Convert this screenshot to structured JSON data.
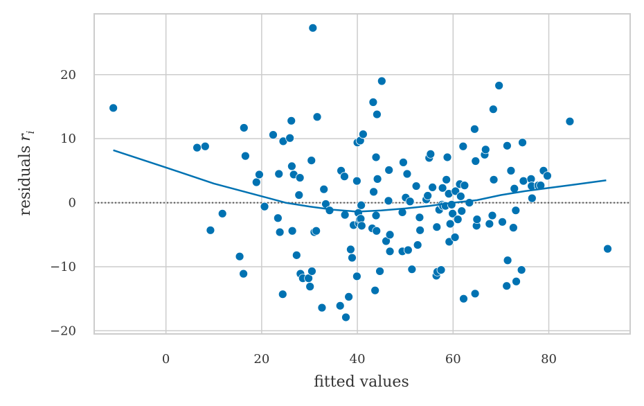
{
  "chart_data": {
    "type": "scatter",
    "xlabel": "fitted values",
    "ylabel": "residuals",
    "ylabel_var": "r",
    "ylabel_sub": "i",
    "xlim": [
      -15,
      97
    ],
    "ylim": [
      -20.5,
      29.5
    ],
    "x_ticks": [
      0,
      20,
      40,
      60,
      80
    ],
    "y_ticks": [
      -20,
      -10,
      0,
      10,
      20
    ],
    "x_tick_labels": [
      "0",
      "20",
      "40",
      "60",
      "80"
    ],
    "y_tick_labels": [
      "−20",
      "−10",
      "0",
      "10",
      "20"
    ],
    "grid": true,
    "colors": {
      "points": "#0072b2",
      "smooth": "#0072b2",
      "zero_line": "#555555",
      "grid": "#cccccc",
      "frame": "#cccccc"
    },
    "reference_line": {
      "y": 0,
      "style": "dotted"
    },
    "smooth_line": {
      "x": [
        -11,
        0,
        10,
        20,
        25,
        30,
        35,
        40,
        45,
        50,
        55,
        60,
        65,
        70,
        75,
        80,
        85,
        92
      ],
      "y": [
        8.2,
        5.5,
        3.0,
        1.0,
        0.0,
        -0.6,
        -1.1,
        -1.4,
        -1.2,
        -0.9,
        -0.5,
        0.0,
        0.4,
        1.2,
        1.8,
        2.3,
        2.8,
        3.5
      ]
    },
    "points": [
      [
        -11,
        14.8
      ],
      [
        6.5,
        8.6
      ],
      [
        8.2,
        8.8
      ],
      [
        9.3,
        -4.3
      ],
      [
        11.8,
        -1.7
      ],
      [
        15.4,
        -8.4
      ],
      [
        16.2,
        -11.1
      ],
      [
        16.3,
        11.7
      ],
      [
        16.6,
        7.3
      ],
      [
        18.9,
        3.2
      ],
      [
        19.5,
        4.4
      ],
      [
        20.6,
        -0.6
      ],
      [
        22.4,
        10.6
      ],
      [
        23.4,
        -2.4
      ],
      [
        23.6,
        4.5
      ],
      [
        23.8,
        -4.6
      ],
      [
        24.4,
        -14.3
      ],
      [
        24.5,
        9.6
      ],
      [
        25.9,
        10.1
      ],
      [
        26.2,
        12.8
      ],
      [
        26.3,
        5.7
      ],
      [
        26.4,
        -4.4
      ],
      [
        26.7,
        4.4
      ],
      [
        27.3,
        -8.2
      ],
      [
        27.8,
        1.2
      ],
      [
        28.0,
        3.9
      ],
      [
        28.1,
        -11.1
      ],
      [
        28.6,
        -11.8
      ],
      [
        29.8,
        -11.8
      ],
      [
        30.1,
        -13.1
      ],
      [
        30.4,
        6.6
      ],
      [
        30.5,
        -10.7
      ],
      [
        30.7,
        27.3
      ],
      [
        31.0,
        -4.6
      ],
      [
        31.4,
        -4.4
      ],
      [
        31.6,
        13.4
      ],
      [
        32.6,
        -16.4
      ],
      [
        33.0,
        2.1
      ],
      [
        33.4,
        -0.2
      ],
      [
        34.2,
        -1.2
      ],
      [
        36.4,
        -16.1
      ],
      [
        36.6,
        5.0
      ],
      [
        37.3,
        4.1
      ],
      [
        37.4,
        -1.9
      ],
      [
        37.6,
        -17.9
      ],
      [
        38.2,
        -14.7
      ],
      [
        38.6,
        -7.3
      ],
      [
        38.9,
        -8.6
      ],
      [
        39.2,
        -3.5
      ],
      [
        39.9,
        -11.5
      ],
      [
        39.9,
        3.4
      ],
      [
        40.0,
        9.4
      ],
      [
        40.2,
        -1.6
      ],
      [
        40.3,
        -3.2
      ],
      [
        40.5,
        -2.6
      ],
      [
        40.6,
        9.7
      ],
      [
        40.7,
        -2.5
      ],
      [
        40.8,
        -0.4
      ],
      [
        40.9,
        -3.6
      ],
      [
        41.2,
        10.7
      ],
      [
        43.1,
        -4.0
      ],
      [
        43.3,
        15.7
      ],
      [
        43.4,
        1.7
      ],
      [
        43.7,
        -13.7
      ],
      [
        43.9,
        7.1
      ],
      [
        43.9,
        -2.0
      ],
      [
        44.0,
        -4.4
      ],
      [
        44.1,
        13.8
      ],
      [
        44.2,
        3.7
      ],
      [
        44.7,
        -10.7
      ],
      [
        45.1,
        19.0
      ],
      [
        46.0,
        -6.0
      ],
      [
        46.5,
        0.3
      ],
      [
        46.6,
        5.1
      ],
      [
        46.8,
        -5.0
      ],
      [
        46.8,
        -7.6
      ],
      [
        49.4,
        -1.5
      ],
      [
        49.4,
        -7.6
      ],
      [
        49.6,
        6.3
      ],
      [
        50.1,
        0.8
      ],
      [
        50.4,
        4.5
      ],
      [
        50.6,
        -7.4
      ],
      [
        51.0,
        0.2
      ],
      [
        51.4,
        -10.4
      ],
      [
        52.3,
        2.6
      ],
      [
        52.6,
        -6.6
      ],
      [
        53.0,
        -2.3
      ],
      [
        53.1,
        -4.3
      ],
      [
        54.4,
        0.5
      ],
      [
        54.7,
        1.1
      ],
      [
        55.0,
        7.0
      ],
      [
        55.3,
        7.6
      ],
      [
        55.7,
        2.4
      ],
      [
        56.5,
        -11.4
      ],
      [
        56.6,
        -3.8
      ],
      [
        56.7,
        -10.8
      ],
      [
        57.1,
        -1.1
      ],
      [
        57.5,
        -10.5
      ],
      [
        57.7,
        -0.3
      ],
      [
        57.8,
        2.3
      ],
      [
        57.9,
        -0.5
      ],
      [
        58.4,
        -0.5
      ],
      [
        58.6,
        3.6
      ],
      [
        58.8,
        7.1
      ],
      [
        59.1,
        1.4
      ],
      [
        59.2,
        -6.1
      ],
      [
        59.4,
        -3.3
      ],
      [
        59.7,
        -0.3
      ],
      [
        59.9,
        -1.7
      ],
      [
        60.4,
        -5.4
      ],
      [
        60.5,
        1.8
      ],
      [
        61.0,
        -2.6
      ],
      [
        61.4,
        2.9
      ],
      [
        61.6,
        1.0
      ],
      [
        61.8,
        -1.3
      ],
      [
        62.1,
        8.8
      ],
      [
        62.2,
        -15.0
      ],
      [
        62.4,
        2.7
      ],
      [
        63.4,
        0.0
      ],
      [
        64.5,
        11.5
      ],
      [
        64.6,
        -14.2
      ],
      [
        64.7,
        6.5
      ],
      [
        64.9,
        -3.6
      ],
      [
        65.0,
        -2.6
      ],
      [
        66.6,
        7.5
      ],
      [
        66.8,
        8.3
      ],
      [
        67.6,
        -3.3
      ],
      [
        68.2,
        -2.0
      ],
      [
        68.4,
        14.6
      ],
      [
        68.5,
        3.6
      ],
      [
        69.6,
        18.3
      ],
      [
        70.3,
        -3.0
      ],
      [
        71.2,
        -13.0
      ],
      [
        71.3,
        8.9
      ],
      [
        71.4,
        -9.0
      ],
      [
        72.1,
        5.0
      ],
      [
        72.6,
        -3.9
      ],
      [
        72.8,
        2.2
      ],
      [
        73.1,
        -1.2
      ],
      [
        73.2,
        -12.3
      ],
      [
        74.3,
        -10.5
      ],
      [
        74.5,
        9.4
      ],
      [
        74.7,
        3.4
      ],
      [
        76.3,
        3.7
      ],
      [
        76.4,
        2.6
      ],
      [
        76.5,
        0.7
      ],
      [
        77.8,
        2.7
      ],
      [
        78.3,
        2.7
      ],
      [
        78.9,
        5.0
      ],
      [
        79.7,
        4.2
      ],
      [
        84.4,
        12.7
      ],
      [
        92.3,
        -7.2
      ]
    ]
  }
}
